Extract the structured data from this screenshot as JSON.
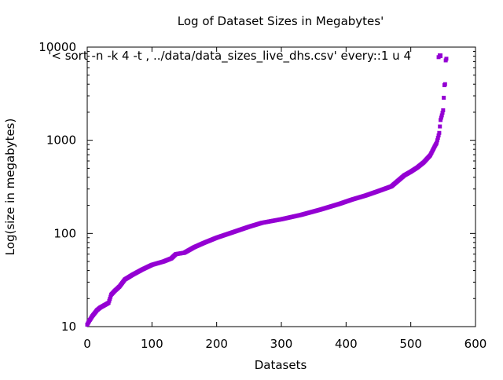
{
  "chart_data": {
    "type": "scatter",
    "title": "Log of Dataset Sizes in Megabytes'",
    "xlabel": "Datasets",
    "ylabel": "Log(size in megabytes)",
    "xlim": [
      0,
      600
    ],
    "ylim": [
      10,
      10000
    ],
    "y_scale": "log",
    "xticks": [
      "0",
      "100",
      "200",
      "300",
      "400",
      "500",
      "600"
    ],
    "yticks": [
      "10",
      "100",
      "1000",
      "10000"
    ],
    "grid": false,
    "legend_position": "top-right",
    "series": [
      {
        "name": "'< sort -n -k 4 -t , ../data/data_sizes_live_dhs.csv' every::1 u 4",
        "color": "#9400d3",
        "knots": [
          [
            0,
            10.5
          ],
          [
            3,
            11.5
          ],
          [
            8,
            13
          ],
          [
            15,
            15
          ],
          [
            20,
            16
          ],
          [
            28,
            17.2
          ],
          [
            33,
            18
          ],
          [
            37,
            22
          ],
          [
            42,
            24
          ],
          [
            50,
            27
          ],
          [
            58,
            32
          ],
          [
            70,
            36
          ],
          [
            85,
            41
          ],
          [
            100,
            46
          ],
          [
            118,
            50
          ],
          [
            130,
            54
          ],
          [
            137,
            60
          ],
          [
            150,
            62
          ],
          [
            165,
            71
          ],
          [
            180,
            79
          ],
          [
            200,
            90
          ],
          [
            225,
            103
          ],
          [
            250,
            118
          ],
          [
            270,
            130
          ],
          [
            300,
            142
          ],
          [
            330,
            158
          ],
          [
            360,
            180
          ],
          [
            390,
            208
          ],
          [
            410,
            232
          ],
          [
            430,
            255
          ],
          [
            450,
            285
          ],
          [
            470,
            320
          ],
          [
            490,
            420
          ],
          [
            500,
            460
          ],
          [
            510,
            510
          ],
          [
            520,
            580
          ],
          [
            530,
            690
          ],
          [
            537,
            860
          ],
          [
            540,
            940
          ],
          [
            542,
            1060
          ],
          [
            544,
            1200
          ],
          [
            546,
            1650
          ],
          [
            548,
            1850
          ],
          [
            550,
            2100
          ],
          [
            552,
            3900
          ],
          [
            553,
            4000
          ],
          [
            554,
            7200
          ]
        ],
        "extra_points": [
          [
            543,
            7800
          ],
          [
            555,
            7500
          ]
        ]
      }
    ]
  }
}
